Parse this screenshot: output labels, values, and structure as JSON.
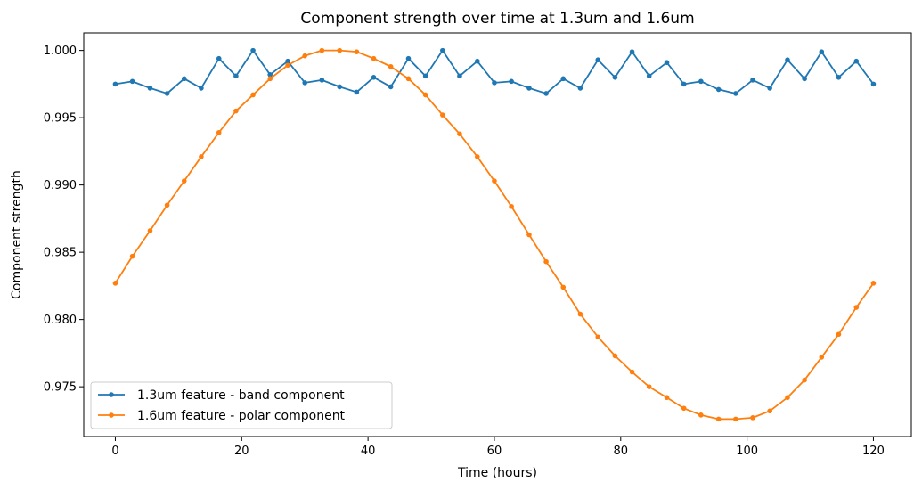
{
  "chart_data": {
    "type": "line",
    "title": "Component strength over time at 1.3um and 1.6um",
    "xlabel": "Time (hours)",
    "ylabel": "Component strength",
    "xlim": [
      -5,
      126
    ],
    "ylim": [
      0.9713,
      1.0013
    ],
    "xticks": [
      0,
      20,
      40,
      60,
      80,
      100,
      120
    ],
    "yticks": [
      0.975,
      0.98,
      0.985,
      0.99,
      0.995,
      1.0
    ],
    "grid": false,
    "legend": "lower-left",
    "series": [
      {
        "name": "1.3um feature - band component",
        "color": "#1f77b4",
        "marker": "circle",
        "x": [
          0,
          2.7,
          5.5,
          8.2,
          10.9,
          13.6,
          16.4,
          19.1,
          21.8,
          24.5,
          27.3,
          30,
          32.7,
          35.5,
          38.2,
          40.9,
          43.6,
          46.4,
          49.1,
          51.8,
          54.5,
          57.3,
          60,
          62.7,
          65.5,
          68.2,
          70.9,
          73.6,
          76.4,
          79.1,
          81.8,
          84.5,
          87.3,
          90,
          92.7,
          95.5,
          98.2,
          100.9,
          103.6,
          106.4,
          109.1,
          111.8,
          114.5,
          117.3,
          120
        ],
        "y": [
          0.9975,
          0.9977,
          0.9972,
          0.9968,
          0.9979,
          0.9972,
          0.9994,
          0.9981,
          1.0,
          0.9982,
          0.9992,
          0.9976,
          0.9978,
          0.9973,
          0.9969,
          0.998,
          0.9973,
          0.9994,
          0.9981,
          1.0,
          0.9981,
          0.9992,
          0.9976,
          0.9977,
          0.9972,
          0.9968,
          0.9979,
          0.9972,
          0.9993,
          0.998,
          0.9999,
          0.9981,
          0.9991,
          0.9975,
          0.9977,
          0.9971,
          0.9968,
          0.9978,
          0.9972,
          0.9993,
          0.9979,
          0.9999,
          0.998,
          0.9992,
          0.9975
        ]
      },
      {
        "name": "1.6um feature - polar component",
        "color": "#ff7f0e",
        "marker": "circle",
        "x": [
          0,
          2.7,
          5.5,
          8.2,
          10.9,
          13.6,
          16.4,
          19.1,
          21.8,
          24.5,
          27.3,
          30,
          32.7,
          35.5,
          38.2,
          40.9,
          43.6,
          46.4,
          49.1,
          51.8,
          54.5,
          57.3,
          60,
          62.7,
          65.5,
          68.2,
          70.9,
          73.6,
          76.4,
          79.1,
          81.8,
          84.5,
          87.3,
          90,
          92.7,
          95.5,
          98.2,
          100.9,
          103.6,
          106.4,
          109.1,
          111.8,
          114.5,
          117.3,
          120
        ],
        "y": [
          0.9827,
          0.9847,
          0.9866,
          0.9885,
          0.9903,
          0.9921,
          0.9939,
          0.9955,
          0.9967,
          0.9979,
          0.9989,
          0.9996,
          1.0,
          1.0,
          0.9999,
          0.9994,
          0.9988,
          0.9979,
          0.9967,
          0.9952,
          0.9938,
          0.9921,
          0.9903,
          0.9884,
          0.9863,
          0.9843,
          0.9824,
          0.9804,
          0.9787,
          0.9773,
          0.9761,
          0.975,
          0.9742,
          0.9734,
          0.9729,
          0.9726,
          0.9726,
          0.9727,
          0.9732,
          0.9742,
          0.9755,
          0.9772,
          0.9789,
          0.9809,
          0.9827
        ]
      }
    ]
  }
}
